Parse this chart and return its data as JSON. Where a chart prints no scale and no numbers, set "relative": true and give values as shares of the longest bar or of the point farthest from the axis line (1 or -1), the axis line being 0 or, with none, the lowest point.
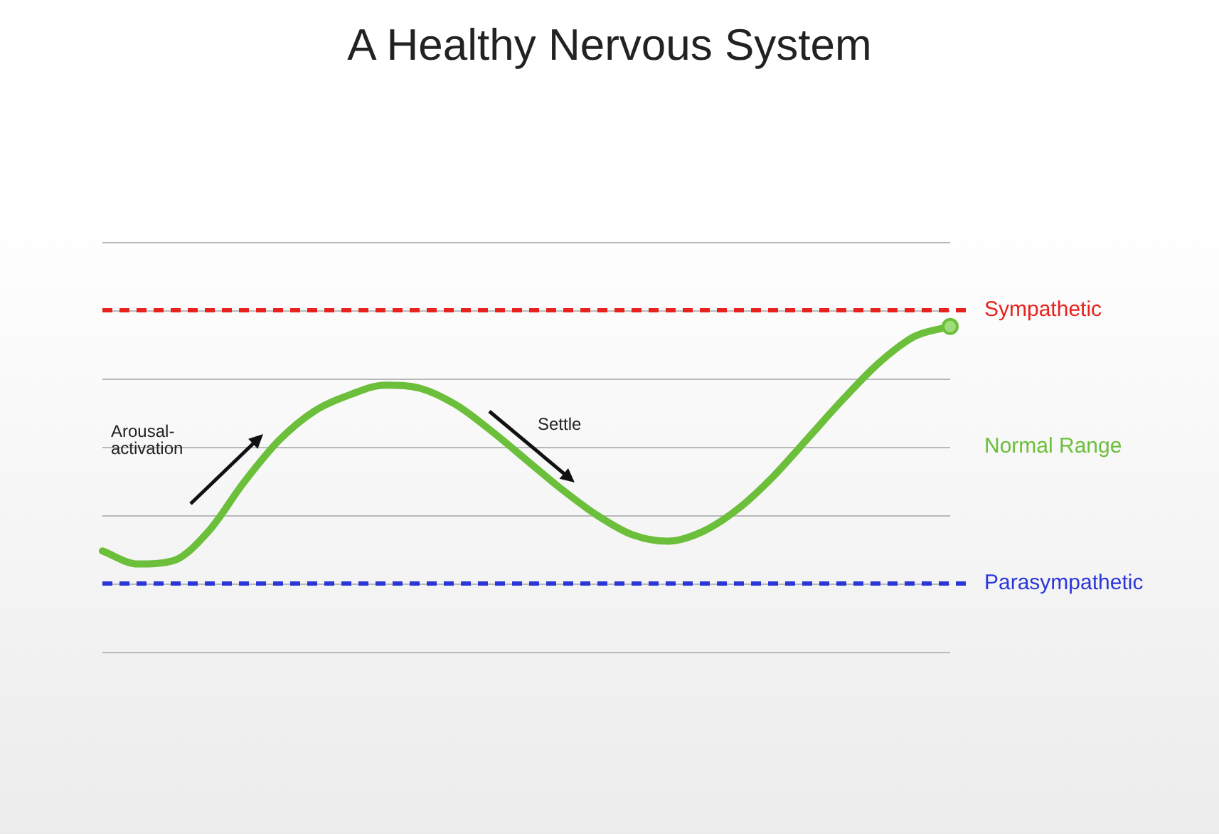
{
  "chart_data": {
    "type": "line",
    "title": "A Healthy Nervous System",
    "relative": true,
    "categories": [
      null,
      null,
      null,
      null,
      null,
      null,
      null,
      null,
      null,
      null,
      null,
      null,
      null,
      null,
      null,
      null,
      null,
      null,
      null,
      null,
      null,
      null,
      null,
      null,
      null
    ],
    "series": [
      {
        "color": "#6cbf3a",
        "values": [
          0.31,
          0.27,
          0.28,
          0.37,
          0.52,
          0.65,
          0.74,
          0.79,
          0.82,
          0.81,
          0.76,
          0.68,
          0.59,
          0.5,
          0.42,
          0.36,
          0.34,
          0.37,
          0.44,
          0.54,
          0.66,
          0.78,
          0.89,
          0.97,
          1
        ]
      }
    ],
    "ref_lines": [
      {
        "axis": "y",
        "value": 1.05,
        "label": "Sympathetic",
        "color": "#e8221e",
        "line_style": "dashed"
      },
      {
        "axis": "y",
        "value": 0.21,
        "label": "Parasympathetic",
        "color": "#2a36d8",
        "line_style": "dashed"
      }
    ],
    "annotations": [
      "Arousal-activation",
      "Settle",
      "Normal Range"
    ],
    "grid": "y",
    "legend": false
  }
}
